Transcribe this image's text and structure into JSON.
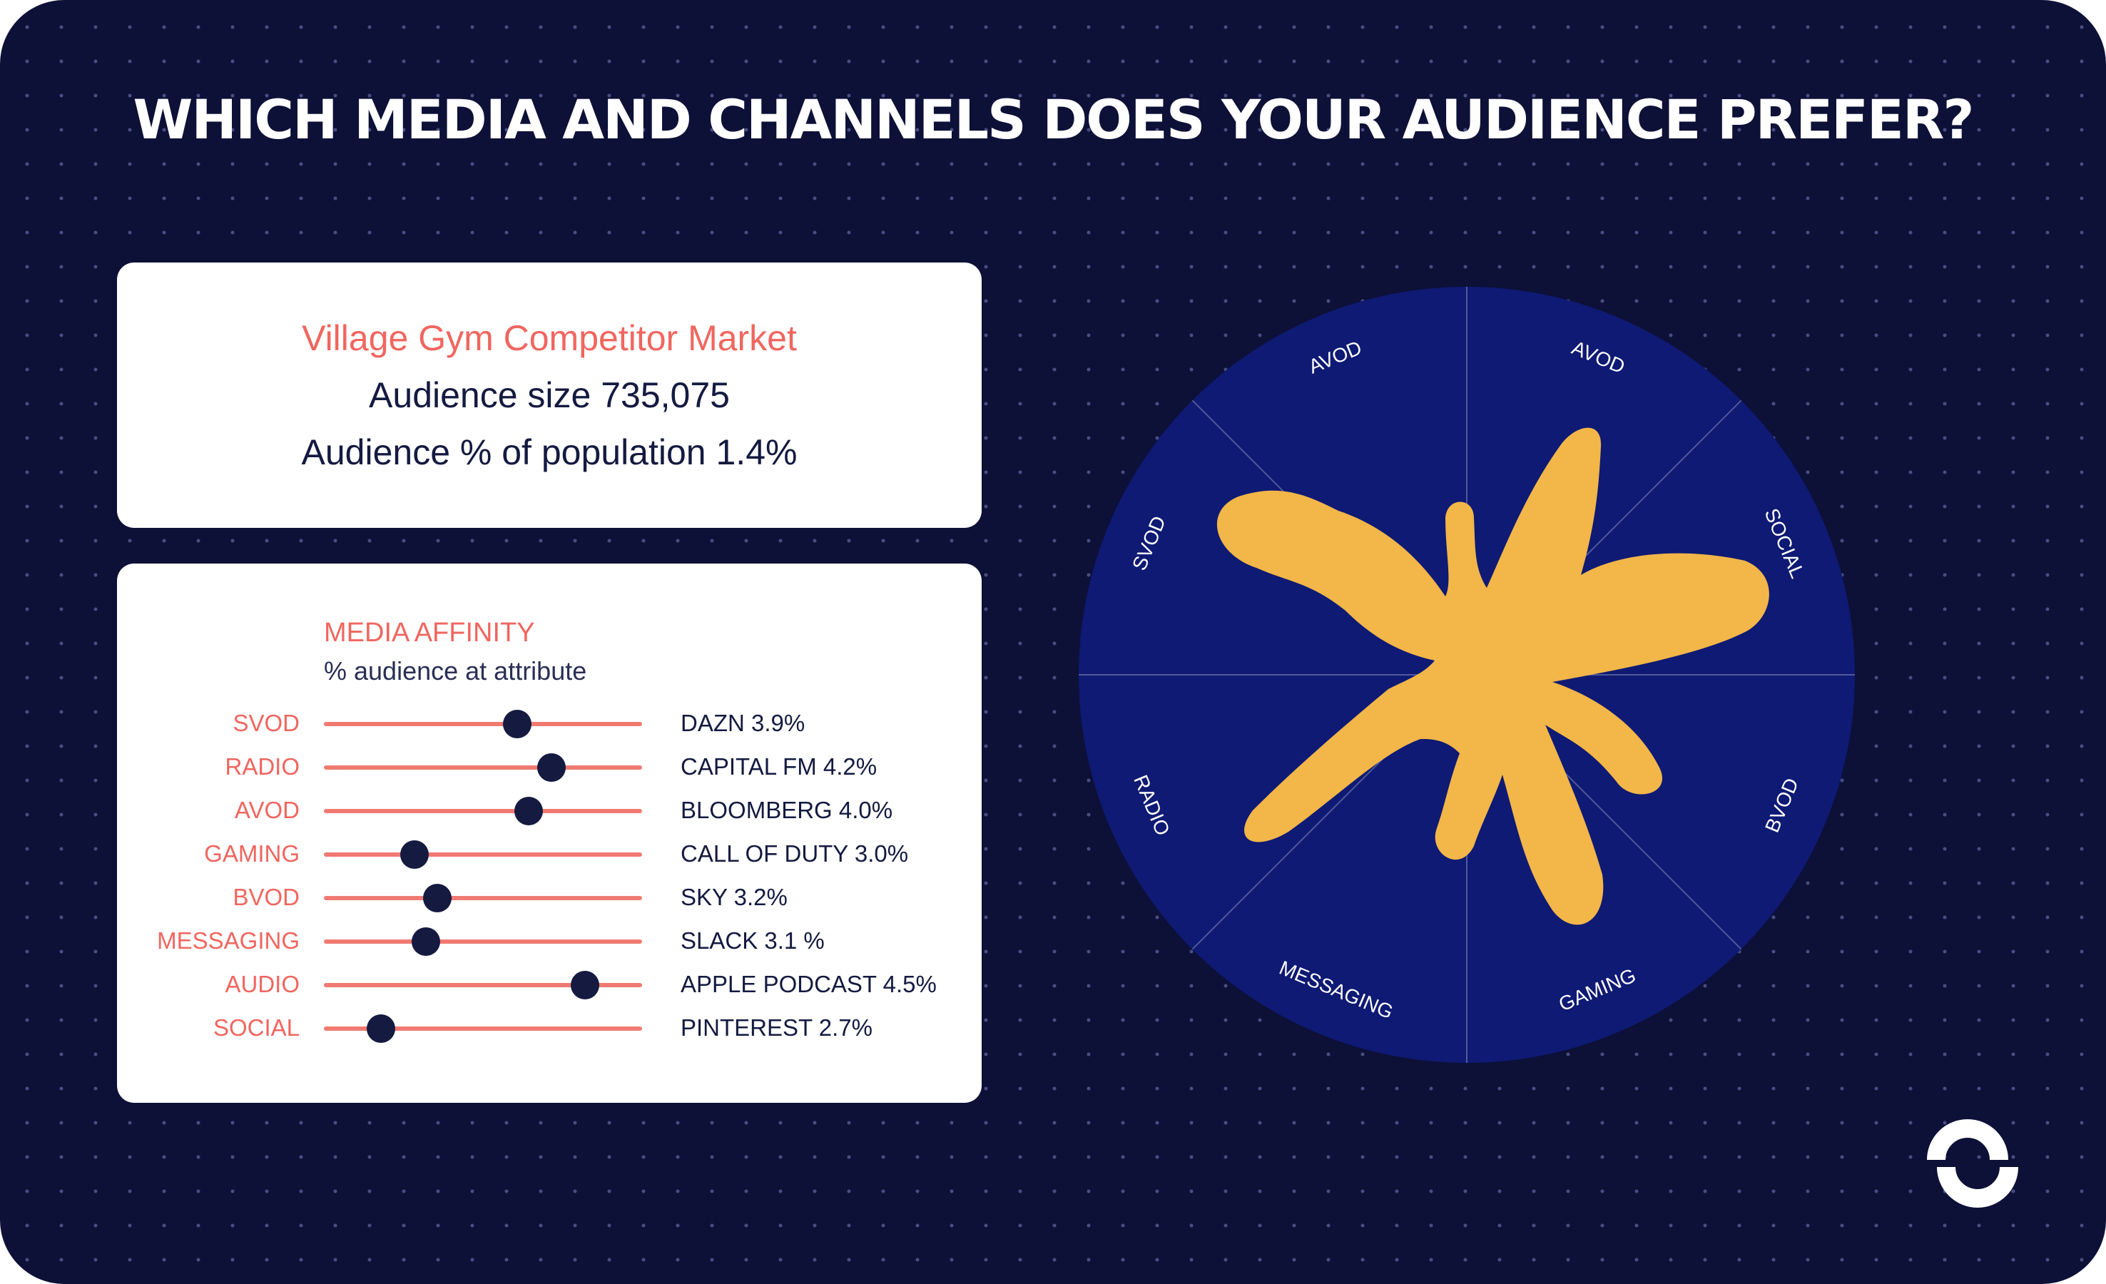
{
  "title": "WHICH MEDIA AND CHANNELS DOES YOUR AUDIENCE PREFER?",
  "info": {
    "market": "Village Gym Competitor Market",
    "audience_size": "Audience size 735,075",
    "audience_pct": "Audience % of population 1.4%"
  },
  "affinity": {
    "heading": "MEDIA AFFINITY",
    "subheading": "% audience at attribute"
  },
  "chart_data": {
    "type": "dot-plot",
    "title": "MEDIA AFFINITY",
    "rows": [
      {
        "category": "SVOD",
        "label": "DAZN 3.9%",
        "value": 3.9
      },
      {
        "category": "RADIO",
        "label": "CAPITAL FM 4.2%",
        "value": 4.2
      },
      {
        "category": "AVOD",
        "label": "BLOOMBERG 4.0%",
        "value": 4.0
      },
      {
        "category": "GAMING",
        "label": "CALL OF DUTY 3.0%",
        "value": 3.0
      },
      {
        "category": "BVOD",
        "label": "SKY 3.2%",
        "value": 3.2
      },
      {
        "category": "MESSAGING",
        "label": "SLACK 3.1 %",
        "value": 3.1
      },
      {
        "category": "AUDIO",
        "label": "APPLE PODCAST 4.5%",
        "value": 4.5
      },
      {
        "category": "SOCIAL",
        "label": "PINTEREST 2.7%",
        "value": 2.7
      }
    ],
    "xlim": [
      2.2,
      5.0
    ],
    "radar_labels": [
      "AVOD",
      "SOCIAL",
      "BVOD",
      "GAMING",
      "MESSAGING",
      "RADIO",
      "SVOD",
      "AVOD"
    ]
  },
  "colors": {
    "background": "#0d1037",
    "accent": "#f0665f",
    "radar_fill": "#0e1a73",
    "blob": "#f2b649",
    "text_dark": "#141a40"
  },
  "logo": {
    "icon": "brand-s-logo-icon"
  }
}
